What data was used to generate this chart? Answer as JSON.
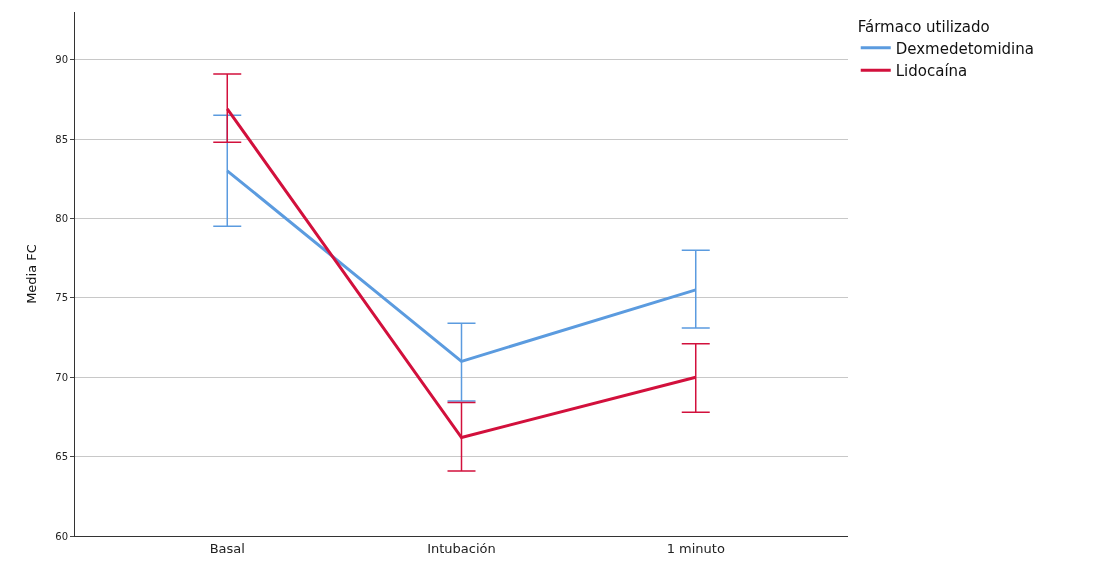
{
  "chart_data": {
    "type": "line",
    "ylabel": "Media FC",
    "legend_title": "Fármaco utilizado",
    "categories": [
      "Basal",
      "Intubación",
      "1 minuto"
    ],
    "series": [
      {
        "name": "Dexmedetomidina",
        "color": "#5b9bdf",
        "values": [
          83.0,
          71.0,
          75.5
        ],
        "errors": [
          [
            79.5,
            86.5
          ],
          [
            68.5,
            73.4
          ],
          [
            73.1,
            78.0
          ]
        ]
      },
      {
        "name": "Lidocaína",
        "color": "#d2103c",
        "values": [
          86.9,
          66.2,
          70.0
        ],
        "errors": [
          [
            84.8,
            89.1
          ],
          [
            64.1,
            68.4
          ],
          [
            67.8,
            72.1
          ]
        ]
      }
    ],
    "ylim": [
      60,
      93
    ],
    "yticks": [
      60,
      65,
      70,
      75,
      80,
      85,
      90
    ],
    "grid": "y",
    "legend": "top right",
    "marker": "none",
    "line_style": "solid"
  }
}
